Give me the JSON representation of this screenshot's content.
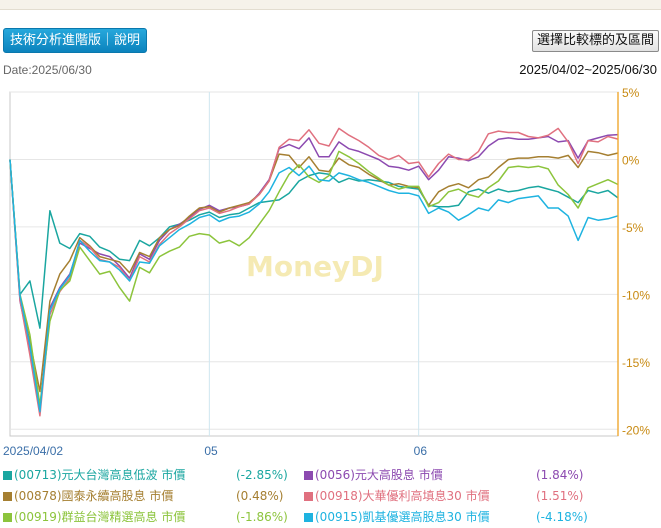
{
  "header": {
    "tech_button": "技術分析進階版｜說明",
    "compare_button": "選擇比較標的及區間",
    "date_label": "Date:2025/06/30",
    "range_label": "2025/04/02~2025/06/30"
  },
  "chart_data": {
    "type": "line",
    "title": "",
    "xlabel": "",
    "ylabel": "",
    "watermark": "MoneyDJ",
    "x_tick_labels": [
      "2025/04/02",
      "05",
      "06"
    ],
    "x_tick_positions": [
      0,
      20,
      41
    ],
    "y_ticks": [
      "5%",
      "0%",
      "-5%",
      "-10%",
      "-15%",
      "-20%"
    ],
    "y_tick_values": [
      5,
      0,
      -5,
      -10,
      -15,
      -20
    ],
    "ylim": [
      -20.5,
      5
    ],
    "x_count": 62,
    "grid": true,
    "legend_position": "bottom",
    "series": [
      {
        "name": "(00713)元大台灣高息低波 市價",
        "pct": "(-2.85%)",
        "color": "#1aa6a0",
        "values": [
          0,
          -10,
          -9,
          -12.5,
          -3.8,
          -6.2,
          -6.6,
          -5.5,
          -5.7,
          -6.5,
          -6.8,
          -7.4,
          -7.5,
          -6,
          -6.4,
          -5.8,
          -5,
          -4.8,
          -4.5,
          -4.1,
          -3.9,
          -4.3,
          -4.1,
          -4,
          -3.6,
          -3.2,
          -3.1,
          -3,
          -2.5,
          -1.6,
          -1.2,
          -1,
          -1.1,
          -1.7,
          -1.4,
          -1.6,
          -1.5,
          -1.6,
          -1.7,
          -2,
          -2.1,
          -2.2,
          -3.4,
          -3.5,
          -3.5,
          -3.4,
          -2.4,
          -2.2,
          -2.5,
          -2.2,
          -2.4,
          -2.3,
          -2.1,
          -2.0,
          -2.2,
          -2.4,
          -2.8,
          -3.2,
          -2.3,
          -2.5,
          -2.3,
          -2.85
        ]
      },
      {
        "name": "(0056)元大高股息 市價",
        "pct": "(1.84%)",
        "color": "#8c4ab0",
        "values": [
          0,
          -10.5,
          -14,
          -18.5,
          -11,
          -9.5,
          -8.5,
          -6.2,
          -6.6,
          -7,
          -7.2,
          -7.9,
          -8.8,
          -7,
          -7.4,
          -6,
          -5.2,
          -4.8,
          -4.3,
          -3.7,
          -3.4,
          -3.8,
          -3.6,
          -3.5,
          -3.3,
          -2.5,
          -1.5,
          0.8,
          1.1,
          0.8,
          1.6,
          0.2,
          0.2,
          1.3,
          0.8,
          0.6,
          0.3,
          0,
          -0.5,
          -0.6,
          -0.8,
          -0.5,
          -1.5,
          -0.8,
          0.2,
          0.1,
          -0.1,
          0.2,
          1,
          1.5,
          1.6,
          1.5,
          1.5,
          1.6,
          1.7,
          1.3,
          1.4,
          0.1,
          1.4,
          1.6,
          1.8,
          1.84
        ]
      },
      {
        "name": "(00878)國泰永續高股息 市價",
        "pct": "(0.48%)",
        "color": "#a57f31",
        "values": [
          0,
          -10.2,
          -13.5,
          -17.2,
          -10.5,
          -8.5,
          -7.5,
          -5.8,
          -6.4,
          -7.2,
          -7.4,
          -7.6,
          -8.4,
          -6.9,
          -7.2,
          -5.8,
          -5.2,
          -4.9,
          -4.2,
          -3.6,
          -3.5,
          -3.9,
          -3.6,
          -3.4,
          -3.2,
          -2.6,
          -1.6,
          0.4,
          0.3,
          -0.6,
          0.2,
          -0.8,
          -0.9,
          0.1,
          -0.4,
          -0.6,
          -1.1,
          -1.5,
          -1.9,
          -1.8,
          -2,
          -2.1,
          -3.4,
          -2.4,
          -2,
          -1.8,
          -2.1,
          -1.5,
          -1.3,
          -0.6,
          0,
          0.1,
          0.1,
          0.2,
          0.2,
          0.1,
          0.3,
          -0.6,
          0.6,
          0.5,
          0.3,
          0.48
        ]
      },
      {
        "name": "(00918)大華優利高填息30 市價",
        "pct": "(1.51%)",
        "color": "#e0707f",
        "values": [
          0,
          -10.4,
          -14.5,
          -19,
          -11.5,
          -9.8,
          -8.8,
          -6,
          -6.5,
          -7.4,
          -7.6,
          -8,
          -9,
          -7.2,
          -7.6,
          -6.3,
          -5.5,
          -5,
          -4.4,
          -3.8,
          -3.6,
          -4,
          -3.8,
          -3.5,
          -3.3,
          -2.6,
          -1.6,
          0.9,
          1.5,
          1.4,
          2.2,
          1.2,
          1,
          2.3,
          1.8,
          1.4,
          0.9,
          0.3,
          0,
          0.3,
          -0.3,
          -0.2,
          -1.3,
          -0.3,
          0.4,
          0,
          0,
          0.6,
          1.9,
          2.1,
          2.0,
          2.0,
          1.7,
          1.6,
          1.8,
          2.3,
          1.3,
          -0.3,
          1.4,
          1.3,
          1.7,
          1.51
        ]
      },
      {
        "name": "(00919)群益台灣精選高息 市價",
        "pct": "(-1.86%)",
        "color": "#8cc43c",
        "values": [
          0,
          -10,
          -13,
          -18.2,
          -12,
          -9.7,
          -9,
          -6.5,
          -7.5,
          -8.5,
          -8.3,
          -9.5,
          -10.5,
          -8,
          -8.4,
          -7.2,
          -6.8,
          -6.5,
          -5.7,
          -5.5,
          -5.6,
          -6.2,
          -6,
          -6.4,
          -5.8,
          -4.8,
          -3.8,
          -2.4,
          -1.1,
          -0.4,
          -1.3,
          -1.7,
          -1.2,
          0.6,
          0.2,
          -0.3,
          -0.9,
          -1.4,
          -1.9,
          -2.2,
          -2,
          -2,
          -3.5,
          -3.2,
          -2.4,
          -2.2,
          -2.6,
          -2.8,
          -2.1,
          -1.6,
          -0.6,
          -0.5,
          -0.6,
          -0.5,
          -0.7,
          -1.9,
          -2.6,
          -3.6,
          -2.1,
          -1.8,
          -1.5,
          -1.86
        ]
      },
      {
        "name": "(00915)凱基優選高股息30 市價",
        "pct": "(-4.18%)",
        "color": "#1eb3e0",
        "values": [
          0,
          -10.1,
          -13.8,
          -18.7,
          -11.2,
          -9.6,
          -8.6,
          -6,
          -6.8,
          -7.5,
          -7.6,
          -8.2,
          -9,
          -7.6,
          -7.7,
          -6.4,
          -5.8,
          -5.2,
          -4.8,
          -4.3,
          -4.1,
          -4.6,
          -4.3,
          -4.2,
          -3.9,
          -3.3,
          -2.4,
          -1,
          -0.6,
          -1.2,
          -0.5,
          -1.5,
          -1.6,
          -1,
          -1.2,
          -1.5,
          -1.7,
          -2,
          -2.3,
          -2.5,
          -2.5,
          -2.7,
          -4,
          -3.6,
          -3.9,
          -4.5,
          -4.1,
          -3.6,
          -3.8,
          -3,
          -3.2,
          -2.9,
          -2.8,
          -2.7,
          -3.6,
          -3.6,
          -4.2,
          -6,
          -4.3,
          -4.5,
          -4.4,
          -4.18
        ]
      }
    ]
  }
}
